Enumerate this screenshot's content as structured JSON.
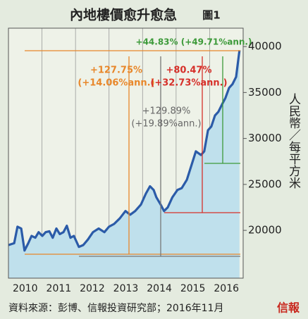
{
  "chart_data": {
    "type": "area-line",
    "title": "內地樓價愈升愈急",
    "figure_label": "圖1",
    "y_axis_label": "人民幣／每平方米",
    "source": "資料來源：彭博、信報投資研究部；2016年11月",
    "logo": "信報",
    "year_labels": [
      "2010",
      "2011",
      "2012",
      "2013",
      "2014",
      "2015",
      "2016"
    ],
    "xlim": [
      2010,
      2017
    ],
    "xticks": [
      2011,
      2012,
      2013,
      2014,
      2015,
      2016
    ],
    "ylim": [
      14800,
      42000
    ],
    "yticks": [
      20000,
      25000,
      30000,
      35000,
      40000
    ],
    "grid": true,
    "line_color": "#2b5ba8",
    "fill_color": "#bfe0ec",
    "x": [
      2010.0,
      2010.17,
      2010.27,
      2010.38,
      2010.48,
      2010.59,
      2010.69,
      2010.8,
      2010.9,
      2011.01,
      2011.11,
      2011.22,
      2011.32,
      2011.43,
      2011.53,
      2011.64,
      2011.74,
      2011.85,
      2011.95,
      2012.1,
      2012.23,
      2012.37,
      2012.52,
      2012.69,
      2012.86,
      2013.0,
      2013.15,
      2013.32,
      2013.49,
      2013.63,
      2013.78,
      2013.95,
      2014.1,
      2014.22,
      2014.33,
      2014.41,
      2014.54,
      2014.64,
      2014.75,
      2014.89,
      2015.04,
      2015.17,
      2015.32,
      2015.46,
      2015.59,
      2015.74,
      2015.84,
      2015.95,
      2016.05,
      2016.16,
      2016.26,
      2016.37,
      2016.47,
      2016.58,
      2016.68,
      2016.79,
      2016.89
    ],
    "values": [
      18400,
      18600,
      20400,
      20200,
      17800,
      18600,
      19400,
      19200,
      19800,
      19400,
      19800,
      19900,
      19200,
      20200,
      19600,
      19800,
      20500,
      19200,
      19400,
      18200,
      18400,
      19000,
      19800,
      20200,
      19800,
      20400,
      20700,
      21300,
      22100,
      21700,
      22100,
      22800,
      24000,
      24800,
      24400,
      23600,
      22800,
      22100,
      22500,
      23600,
      24400,
      24600,
      25500,
      27100,
      28600,
      28200,
      28600,
      30900,
      31300,
      32500,
      32900,
      33700,
      34400,
      35500,
      35900,
      36700,
      39600
    ],
    "annotations": [
      {
        "lines": [
          "+127.75%",
          "(+14.06%ann.)"
        ],
        "color": "#e8872a"
      },
      {
        "lines": [
          "+129.89%",
          "(+19.89%ann.)"
        ],
        "color": "#666666"
      },
      {
        "lines": [
          "+80.47%",
          "(+32.73%ann.)"
        ],
        "color": "#d6302a"
      },
      {
        "lines": [
          "+44.83% (+49.71%ann.)"
        ],
        "color": "#3d9a3a"
      }
    ]
  }
}
